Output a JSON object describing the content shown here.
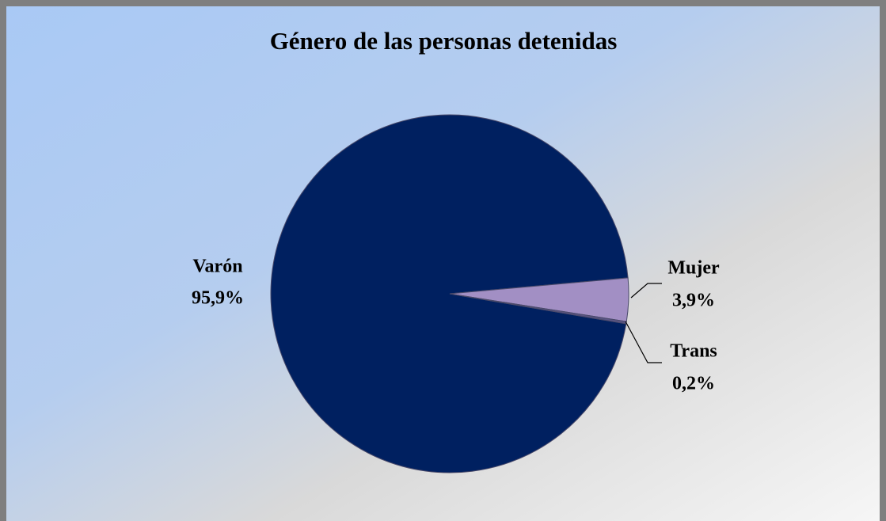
{
  "chart_data": {
    "type": "pie",
    "title": "Género de las personas detenidas",
    "categories": [
      "Varón",
      "Mujer",
      "Trans"
    ],
    "values": [
      95.9,
      3.9,
      0.2
    ],
    "value_labels": [
      "95,9%",
      "3,9%",
      "0,2%"
    ],
    "colors": [
      "#002060",
      "#a28fc4",
      "#5b5585"
    ]
  }
}
